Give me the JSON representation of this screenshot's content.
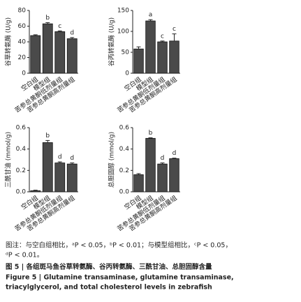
{
  "chart_data": [
    {
      "type": "bar",
      "ylabel": "谷草转氨酶 (U/g)",
      "categories": [
        "空白组",
        "模型组",
        "苦参总黄酮低剂量组",
        "苦参总黄酮高剂量组"
      ],
      "values": [
        48,
        63,
        53,
        44
      ],
      "errors": [
        1,
        1.5,
        1,
        1.5
      ],
      "annotations": [
        null,
        "b",
        "c",
        "d"
      ],
      "color": "#4a4a4a",
      "ylim": [
        0,
        80
      ],
      "yticks": [
        0,
        20,
        40,
        60,
        80
      ]
    },
    {
      "type": "bar",
      "ylabel": "谷丙转氨酶 (U/g)",
      "categories": [
        "空白组",
        "模型组",
        "苦参总黄酮低剂量组",
        "苦参总黄酮高剂量组"
      ],
      "values": [
        58,
        125,
        75,
        77
      ],
      "errors": [
        5,
        3,
        2,
        17
      ],
      "annotations": [
        null,
        "a",
        "c",
        "c"
      ],
      "color": "#4a4a4a",
      "ylim": [
        0,
        150
      ],
      "yticks": [
        0,
        50,
        100,
        150
      ]
    },
    {
      "type": "bar",
      "ylabel": "三酰甘油 (mmol/g)",
      "categories": [
        "空白组",
        "模型组",
        "苦参总黄酮低剂量组",
        "苦参总黄酮高剂量组"
      ],
      "values": [
        0.01,
        0.46,
        0.27,
        0.26
      ],
      "errors": [
        0.005,
        0.02,
        0.01,
        0.01
      ],
      "annotations": [
        null,
        "b",
        "d",
        "d"
      ],
      "color": "#4a4a4a",
      "ylim": [
        0,
        0.6
      ],
      "yticks": [
        {
          "value": 0,
          "label": "0.0"
        },
        0.2,
        0.4,
        0.6
      ]
    },
    {
      "type": "bar",
      "ylabel": "总胆固醇 (mmol/g)",
      "categories": [
        "空白组",
        "模型组",
        "苦参总黄酮低剂量组",
        "苦参总黄酮高剂量组"
      ],
      "values": [
        0.16,
        0.5,
        0.26,
        0.31
      ],
      "errors": [
        0.01,
        0.005,
        0.01,
        0.005
      ],
      "annotations": [
        null,
        "b",
        "d",
        "d"
      ],
      "color": "#4a4a4a",
      "ylim": [
        0,
        0.6
      ],
      "yticks": [
        {
          "value": 0,
          "label": "0.0"
        },
        0.2,
        0.4,
        0.6
      ]
    }
  ],
  "caption": {
    "note": [
      "图注：与空白组相比，ᵃP < 0.05，ᵇP < 0.01；与模型组相比，ᶜP < 0.05，",
      "ᵈP < 0.01。"
    ],
    "title_cn": "图 5 | 各组斑马鱼谷草转氨酶、谷丙转氨酶、三酰甘油、总胆固醇含量",
    "title_en": [
      "Figure 5  |  Glutamine transaminase, glutamine transaminase,",
      "triacylglycerol, and total cholesterol levels in zebrafish"
    ]
  }
}
